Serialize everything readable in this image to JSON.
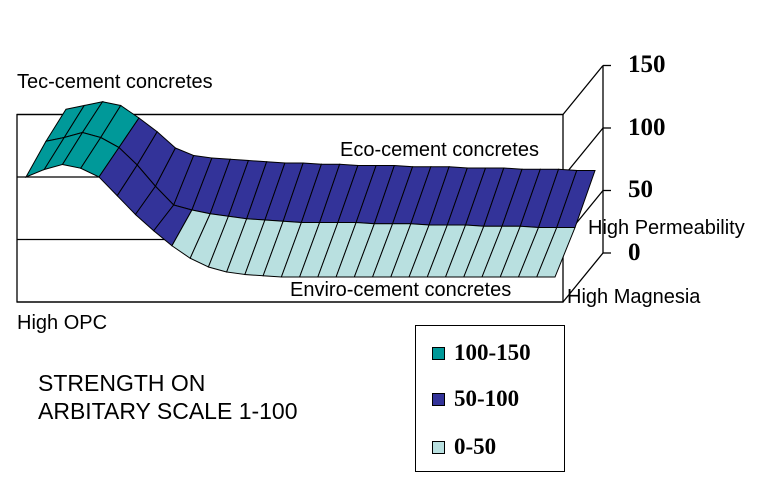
{
  "chart_data": {
    "type": "surface",
    "title": "",
    "annotations": {
      "tec": "Tec-cement concretes",
      "eco": "Eco-cement concretes",
      "enviro": "Enviro-cement concretes",
      "x_start": "High OPC",
      "x_end": "High Magnesia",
      "depth_end": "High Permeability",
      "note_line1": "STRENGTH ON",
      "note_line2": "ARBITARY SCALE 1-100"
    },
    "zlim": [
      0,
      150
    ],
    "z_ticks": [
      "0",
      "50",
      "100",
      "150"
    ],
    "rows": [
      {
        "values": [
          115,
          118,
          121,
          118,
          108,
          97,
          84,
          78,
          76,
          75,
          74,
          73,
          72,
          72,
          71,
          71,
          70,
          70,
          70,
          69,
          69,
          69,
          68,
          68,
          68,
          67,
          67,
          67,
          66,
          66
        ]
      },
      {
        "values": [
          109,
          112,
          116,
          112,
          104,
          90,
          73,
          58,
          54,
          51,
          49,
          47,
          46,
          45,
          44,
          44,
          44,
          44,
          43,
          43,
          43,
          42,
          42,
          42,
          41,
          41,
          41,
          40,
          40,
          40
        ]
      },
      {
        "values": [
          100,
          106,
          110,
          107,
          100,
          85,
          70,
          57,
          45,
          35,
          28,
          24,
          22,
          21,
          20,
          20,
          20,
          20,
          20,
          20,
          20,
          20,
          20,
          20,
          20,
          20,
          20,
          20,
          20,
          20
        ]
      }
    ],
    "bands": [
      {
        "label": "100-150",
        "min": 100,
        "max": 150,
        "color": "#009999"
      },
      {
        "label": "50-100",
        "min": 50,
        "max": 100,
        "color": "#333399"
      },
      {
        "label": "0-50",
        "min": 0,
        "max": 50,
        "color": "#b9e0e0"
      }
    ],
    "legend_placement": "bottom-right"
  }
}
